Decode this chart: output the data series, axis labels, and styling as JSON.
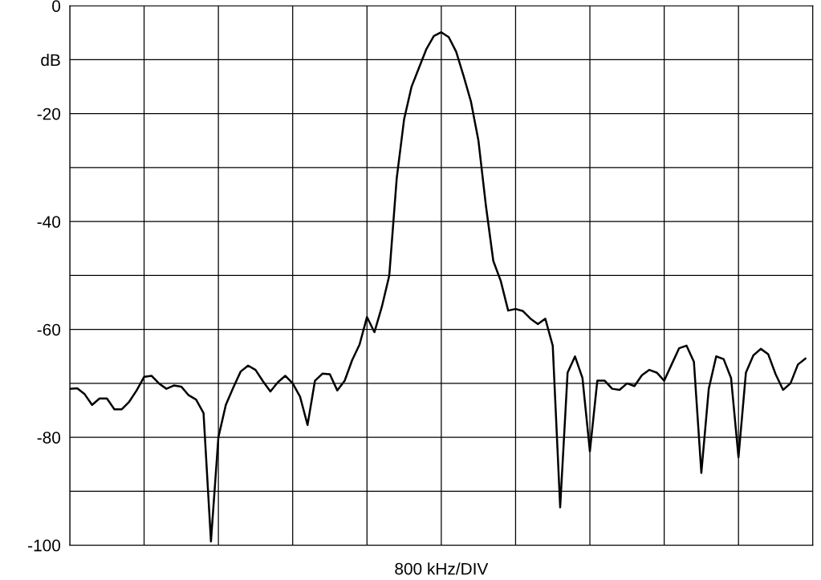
{
  "chart_data": {
    "type": "line",
    "xlabel": "800 kHz/DIV",
    "categories": [
      null,
      null,
      null,
      null,
      null,
      null,
      null,
      null,
      null,
      null,
      null,
      null,
      null,
      null,
      null,
      null,
      null,
      null,
      null,
      null,
      null,
      null,
      null,
      null,
      null,
      null,
      null,
      null,
      null,
      null,
      null,
      null,
      null,
      null,
      null,
      null,
      null,
      null,
      null,
      null,
      null,
      null,
      null,
      null,
      null,
      null,
      null,
      null,
      null,
      null,
      null,
      null,
      null,
      null,
      null,
      null,
      null,
      null,
      null,
      null,
      null,
      null,
      null,
      null,
      null,
      null,
      null,
      null,
      null,
      null,
      null,
      null,
      null,
      null,
      null,
      null,
      null,
      null,
      null,
      null,
      null,
      null,
      null,
      null,
      null,
      null,
      null,
      null,
      null,
      null,
      null,
      null,
      null,
      null,
      null,
      null,
      null,
      null,
      null,
      null
    ],
    "ylim": [
      -100,
      0
    ],
    "yticks": [
      0,
      {
        "value": -10,
        "label": "dB"
      },
      -20,
      {
        "value": -30,
        "label": null
      },
      -40,
      {
        "value": -50,
        "label": null
      },
      -60,
      {
        "value": -70,
        "label": null
      },
      -80,
      {
        "value": -90,
        "label": null
      },
      -100
    ],
    "grid": true,
    "tick_labels": "y",
    "line_style": "solid",
    "marker": "none",
    "series": [
      {
        "color": "#000000",
        "values": [
          -71,
          -70.9,
          -72,
          -74,
          -72.8,
          -72.8,
          -74.8,
          -74.8,
          -73.4,
          -71.3,
          -68.8,
          -68.6,
          -70,
          -71,
          -70.4,
          -70.6,
          -72.2,
          -73,
          -75.5,
          -99.3,
          -80,
          -74,
          -70.8,
          -67.8,
          -66.7,
          -67.5,
          -69.6,
          -71.5,
          -69.8,
          -68.6,
          -70,
          -72.5,
          -77.7,
          -69.5,
          -68.2,
          -68.3,
          -71.3,
          -69.5,
          -65.7,
          -62.8,
          -57.7,
          -60.5,
          -55.8,
          -50,
          -32,
          -21,
          -15,
          -11.5,
          -8,
          -5.6,
          -4.9,
          -5.8,
          -8.5,
          -13,
          -17.8,
          -25,
          -37,
          -47.3,
          -51,
          -56.5,
          -56.2,
          -56.6,
          -58,
          -59,
          -58,
          -63,
          -93,
          -68,
          -65,
          -69,
          -82.6,
          -69.5,
          -69.5,
          -71,
          -71.2,
          -70,
          -70.5,
          -68.5,
          -67.5,
          -68,
          -69.5,
          -66.5,
          -63.5,
          -63,
          -66,
          -86.6,
          -71,
          -65,
          -65.5,
          -69,
          -83.7,
          -68,
          -64.8,
          -63.6,
          -64.6,
          -68.3,
          -71.2,
          -70,
          -66.5,
          -65.4
        ]
      }
    ]
  }
}
